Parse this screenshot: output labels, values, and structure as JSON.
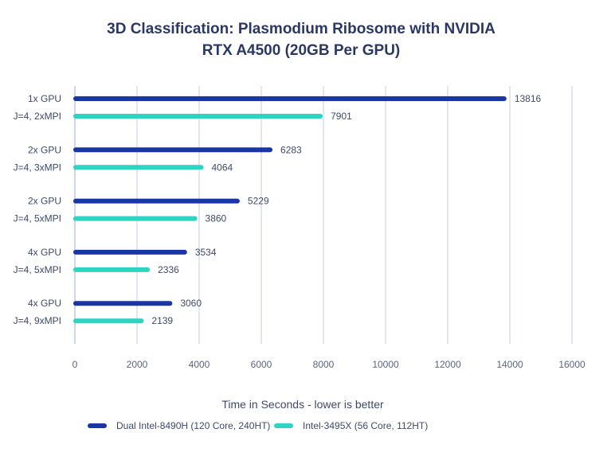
{
  "chart_data": {
    "type": "bar",
    "orientation": "horizontal",
    "title_lines": [
      "3D Classification: Plasmodium Ribosome with NVIDIA",
      "RTX A4500 (20GB Per GPU)"
    ],
    "categories": [
      [
        "1x GPU",
        "J=4, 2xMPI"
      ],
      [
        "2x GPU",
        "J=4, 3xMPI"
      ],
      [
        "2x GPU",
        "J=4, 5xMPI"
      ],
      [
        "4x GPU",
        "J=4, 5xMPI"
      ],
      [
        "4x GPU",
        "J=4, 9xMPI"
      ]
    ],
    "series": [
      {
        "name": "Dual Intel-8490H (120 Core, 240HT)",
        "color": "#1a35a8",
        "values": [
          13816,
          6283,
          5229,
          3534,
          3060
        ]
      },
      {
        "name": "Intel-3495X (56 Core, 112HT)",
        "color": "#2dd4c4",
        "values": [
          7901,
          4064,
          3860,
          2336,
          2139
        ]
      }
    ],
    "xlabel": "Time in Seconds - lower is better",
    "xlim": [
      0,
      16000
    ],
    "xticks": [
      0,
      2000,
      4000,
      6000,
      8000,
      10000,
      12000,
      14000,
      16000
    ],
    "grid": "vertical",
    "data_labels": true,
    "legend_placement": "bottom"
  }
}
